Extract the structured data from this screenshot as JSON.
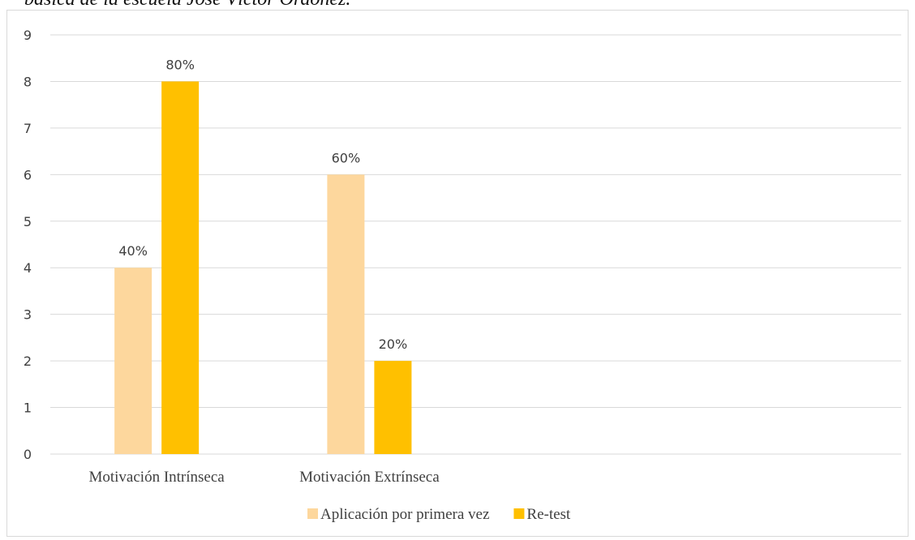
{
  "caption": "básica de la escuela José Víctor Ordóñez.",
  "chart_data": {
    "type": "bar",
    "categories": [
      "Motivación Intrínseca",
      "Motivación Extrínseca",
      "",
      ""
    ],
    "series": [
      {
        "name": "Aplicación por primera vez",
        "values": [
          4,
          6,
          null,
          null
        ],
        "labels": [
          "40%",
          "60%",
          "",
          ""
        ],
        "color": "#fdd79d"
      },
      {
        "name": "Re-test",
        "values": [
          8,
          2,
          null,
          null
        ],
        "labels": [
          "80%",
          "20%",
          "",
          ""
        ],
        "color": "#ffc000"
      }
    ],
    "ylim": [
      0,
      9
    ],
    "yticks": [
      "0",
      "1",
      "2",
      "3",
      "4",
      "5",
      "6",
      "7",
      "8",
      "9"
    ],
    "grid": true,
    "gridColor": "#d9d9d9",
    "legend": "bottom"
  }
}
